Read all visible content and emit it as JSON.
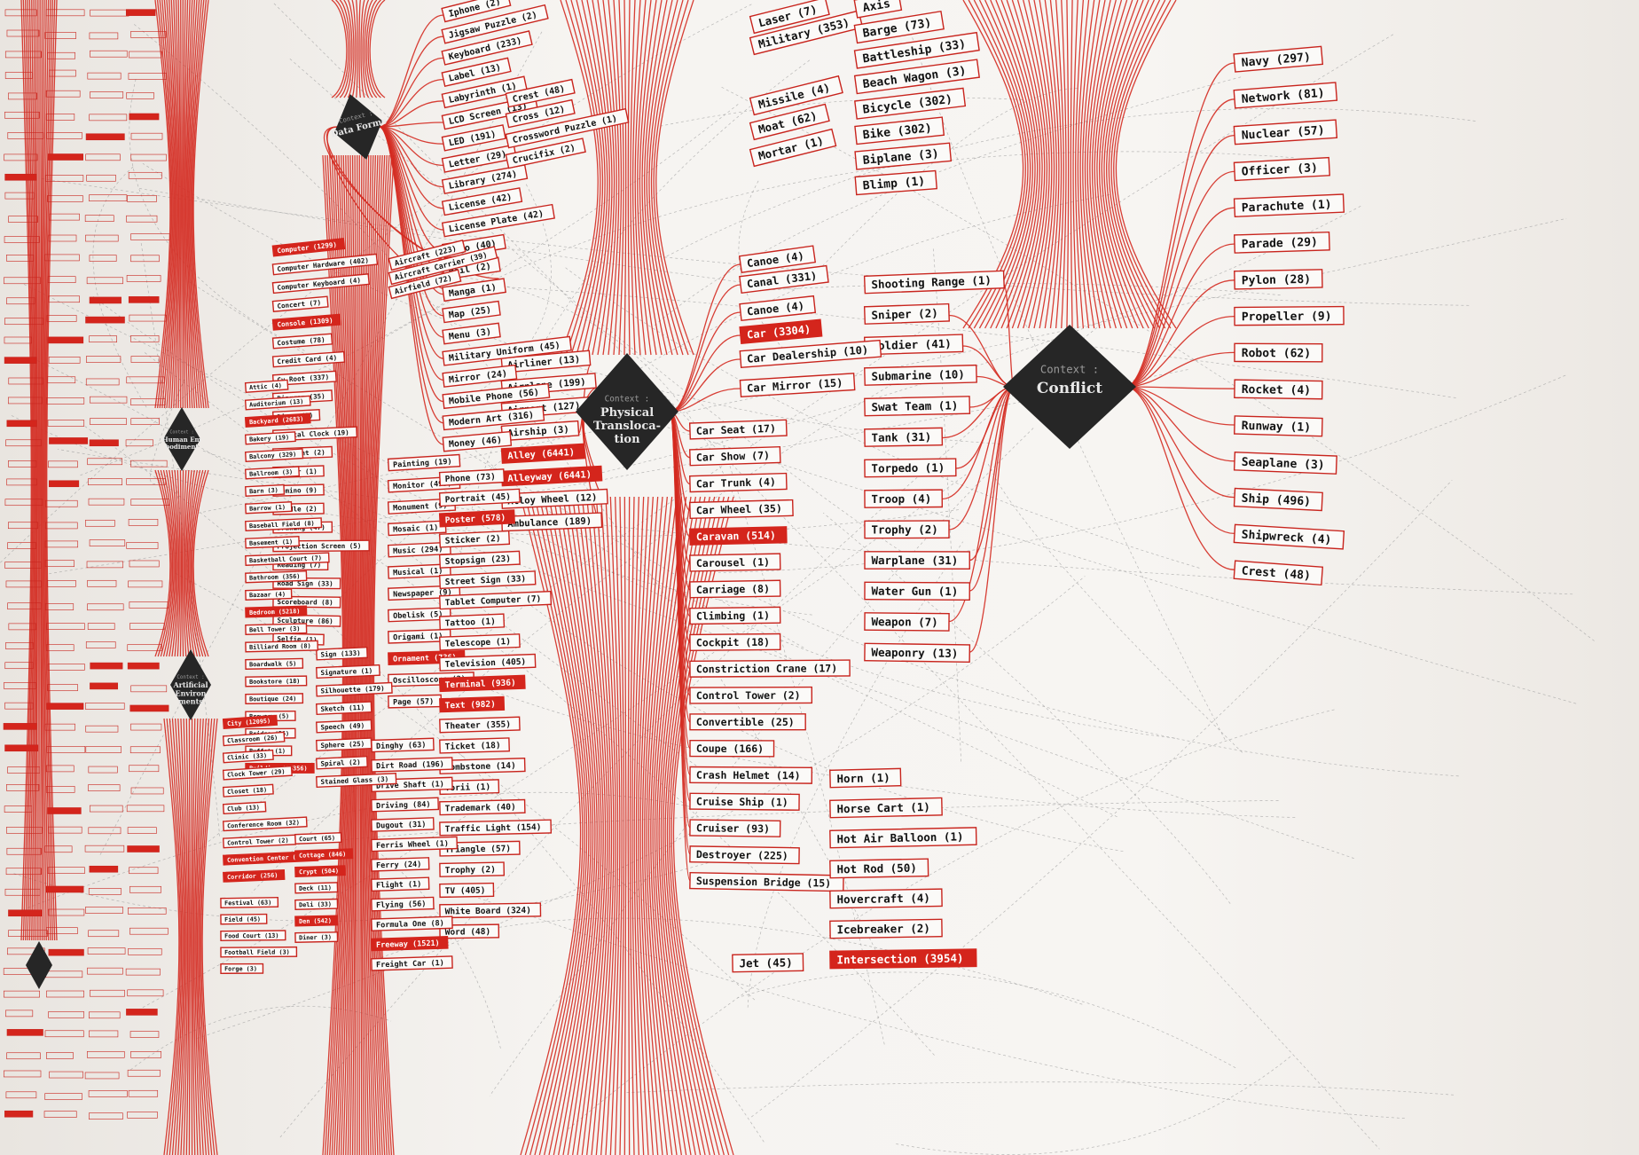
{
  "hubs": [
    {
      "id": "conflict",
      "title": "Context :",
      "label": "Conflict"
    },
    {
      "id": "physical",
      "title": "Context :",
      "label": "Physical Transloca-tion"
    },
    {
      "id": "data",
      "title": "Context :",
      "label": "Data Forms"
    },
    {
      "id": "human",
      "title": "Context :",
      "label": "Human Em bodiment"
    },
    {
      "id": "artificial",
      "title": "Context :",
      "label": "Artificial Environ ments"
    }
  ],
  "conflict_left": [
    "Shooting Range (1)",
    "Sniper (2)",
    "Soldier (41)",
    "Submarine (10)",
    "Swat Team (1)",
    "Tank (31)",
    "Torpedo (1)",
    "Troop (4)",
    "Trophy (2)",
    "Warplane (31)",
    "Water Gun (1)",
    "Weapon (7)",
    "Weaponry (13)"
  ],
  "conflict_right": [
    "Navy (297)",
    "Network (81)",
    "Nuclear (57)",
    "Officer (3)",
    "Parachute (1)",
    "Parade (29)",
    "Pylon (28)",
    "Propeller (9)",
    "Robot (62)",
    "Rocket (4)",
    "Runway (1)",
    "Seaplane (3)",
    "Ship (496)",
    "Shipwreck (4)",
    "Crest (48)"
  ],
  "conflict_top": [
    "Laser (7)",
    "Military (353)",
    "Missile (4)",
    "Moat (62)",
    "Mortar (1)",
    "Axis",
    "Barge (73)",
    "Battleship (33)",
    "Beach Wagon (3)",
    "Bicycle (302)",
    "Bike (302)",
    "Biplane (3)",
    "Blimp (1)"
  ],
  "physical_right": [
    "Canoe (4)",
    "Canal (331)",
    "Canoe (4)",
    "Car (3304)",
    "Car Dealership (10)",
    "Car Mirror (15)"
  ],
  "physical_list": [
    "Car Seat (17)",
    "Car Show (7)",
    "Car Trunk (4)",
    "Car Wheel (35)",
    "Caravan (514)",
    "Carousel (1)",
    "Carriage (8)",
    "Climbing (1)",
    "Cockpit (18)",
    "Constriction Crane (17)",
    "Control Tower (2)",
    "Convertible (25)",
    "Coupe (166)",
    "Crash Helmet (14)",
    "Cruise Ship (1)",
    "Cruiser (93)",
    "Destroyer (225)",
    "Suspension Bridge (15)"
  ],
  "physical_far": [
    "Horn (1)",
    "Horse Cart (1)",
    "Hot Air Balloon (1)",
    "Hot Rod (50)",
    "Hovercraft (4)",
    "Icebreaker (2)",
    "Intersection (3954)"
  ],
  "physical_bottom": [
    "Jet (45)"
  ],
  "physical_left": [
    "Airliner (13)",
    "Airplane (199)",
    "Airport (127)",
    "Airship (3)",
    "Alley (6441)",
    "Alleyway (6441)",
    "Alloy Wheel (12)",
    "Ambulance (189)"
  ],
  "data_right": [
    "Iphone (2)",
    "Jigsaw Puzzle (2)",
    "Keyboard (233)",
    "Label (13)",
    "Labyrinth (1)",
    "LCD Screen (13)",
    "LED (191)",
    "Letter (29)",
    "Library (274)",
    "License (42)",
    "License Plate (42)",
    "Logo (40)",
    "Mail (2)",
    "Manga (1)",
    "Map (25)",
    "Menu (3)",
    "Military Uniform (45)",
    "Mirror (24)",
    "Mobile Phone (56)",
    "Modern Art (316)",
    "Money (46)"
  ],
  "data_right2": [
    "Crest (48)",
    "Cross (12)",
    "Crossword Puzzle (1)",
    "Crucifix (2)"
  ],
  "data_mid": [
    "Aircraft (223)",
    "Aircraft Carrier (39)",
    "Airfield (72)"
  ],
  "data_lower": [
    "Painting (19)",
    "Monitor (499)",
    "Monument (9)",
    "Mosaic (1)",
    "Music (294)",
    "Musical (1)",
    "Newspaper (9)",
    "Obelisk (5)",
    "Origami (1)",
    "Ornament (736)",
    "Oscilloscope (2)",
    "Page (57)"
  ],
  "data_lower2": [
    "Phone (73)",
    "Portrait (45)",
    "Poster (578)",
    "Sticker (2)",
    "Stopsign (23)",
    "Street Sign (33)",
    "Tablet Computer (7)",
    "Tattoo (1)",
    "Telescope (1)",
    "Television (405)",
    "Terminal (936)",
    "Text (982)",
    "Theater (355)",
    "Ticket (18)",
    "Tombstone (14)",
    "Torii (1)",
    "Trademark (40)",
    "Traffic Light (154)",
    "Triangle (57)",
    "Trophy (2)",
    "TV (405)",
    "White Board (324)",
    "Word (48)"
  ],
  "data_bottom": [
    "Dinghy (63)",
    "Dirt Road (196)",
    "Drive Shaft (1)",
    "Driving (84)",
    "Dugout (31)",
    "Ferris Wheel (1)",
    "Ferry (24)",
    "Flight (1)",
    "Flying (56)",
    "Formula One (8)",
    "Freeway (1521)",
    "Freight Car (1)"
  ],
  "human_col": [
    "Computer (1299)",
    "Computer Hardware (402)",
    "Computer Keyboard (4)",
    "Concert (7)",
    "Console (1309)",
    "Costume (78)",
    "Credit Card (4)",
    "Cv Root (337)",
    "Diagram (35)",
    "Diary (2)",
    "Digital Clock (19)",
    "Document (2)",
    "Dollar (1)",
    "Domino (9)",
    "Doodle (2)",
    "Drawing (47)",
    "Projection Screen (5)",
    "Reading (7)",
    "Road Sign (33)",
    "Scoreboard (8)",
    "Sculpture (86)",
    "Selfie (1)"
  ],
  "human_col2": [
    "Sign (133)",
    "Signature (1)",
    "Silhouette (179)",
    "Sketch (11)",
    "Speech (49)",
    "Sphere (25)",
    "Spiral (2)",
    "Stained Glass (3)"
  ],
  "artificial_col": [
    "Attic (4)",
    "Auditorium (13)",
    "Backyard (2683)",
    "Bakery (19)",
    "Balcony (329)",
    "Ballroom (3)",
    "Barn (3)",
    "Barrow (1)",
    "Baseball Field (8)",
    "Basement (1)",
    "Basketball Court (7)",
    "Bathroom (356)",
    "Bazaar (4)",
    "Bedroom (5218)",
    "Bell Tower (3)",
    "Billiard Room (8)",
    "Boardwalk (5)",
    "Bookstore (18)",
    "Boutique (24)",
    "Brewery (5)",
    "Bridge (26)",
    "Buffet (1)",
    "Building (15356)",
    "City (12095)",
    "Classroom (26)",
    "Clinic (33)",
    "Clock Tower (29)",
    "Closet (18)",
    "Club (13)",
    "Conference Room (32)",
    "Control Tower (2)",
    "Convention Center (715)",
    "Corridor (256)",
    "Court (65)",
    "Cottage (846)",
    "Crypt (504)",
    "Deck (11)",
    "Deli (33)",
    "Den (542)",
    "Diner (3)",
    "Festival (63)",
    "Field (45)",
    "Food Court (13)",
    "Football Field (3)",
    "Forge (3)"
  ],
  "highlight": [
    "Car (3304)",
    "Caravan (514)",
    "Intersection (3954)",
    "Alley (6441)",
    "Alleyway (6441)",
    "Poster (578)",
    "Ornament (736)",
    "Terminal (936)",
    "Text (982)",
    "Freeway (1521)",
    "Computer (1299)",
    "Console (1309)",
    "Backyard (2683)",
    "Bedroom (5218)",
    "Building (15356)",
    "City (12095)",
    "Convention Center (715)",
    "Corridor (256)",
    "Cottage (846)",
    "Crypt (504)",
    "Den (542)"
  ],
  "colors": {
    "edge": "#d42a20",
    "hub": "#262626",
    "highlight": "#d4251c"
  }
}
